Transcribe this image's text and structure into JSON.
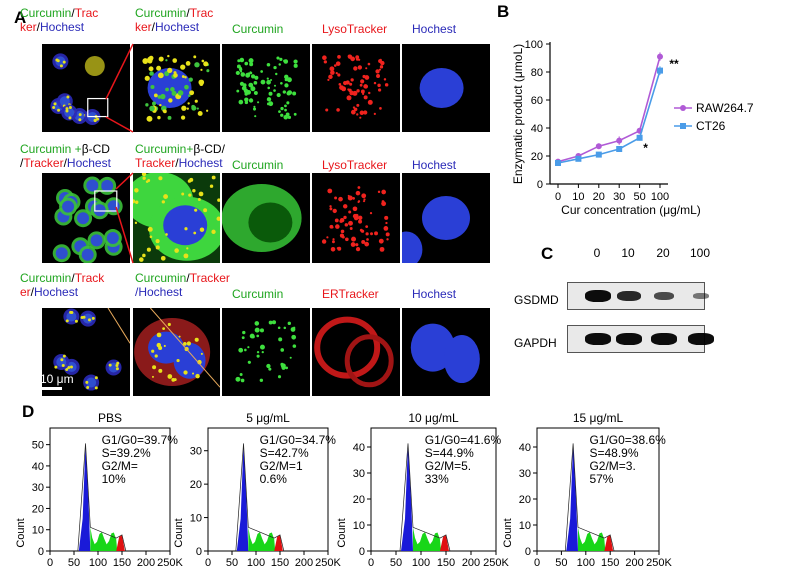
{
  "panel_labels": {
    "a": "A",
    "b": "B",
    "c": "C",
    "d": "D"
  },
  "panel_a": {
    "row1": {
      "title_lines": [
        [
          {
            "t": "Curcumin",
            "c": "green"
          },
          {
            "t": "/",
            "c": "black"
          },
          {
            "t": "Trac",
            "c": "red"
          }
        ],
        [
          {
            "t": "ker",
            "c": "red"
          },
          {
            "t": "/",
            "c": "black"
          },
          {
            "t": "Hochest",
            "c": "blue"
          }
        ]
      ],
      "zoom_lines": [
        [
          {
            "t": "Curcumin",
            "c": "green"
          },
          {
            "t": "/",
            "c": "black"
          },
          {
            "t": "Trac",
            "c": "red"
          }
        ],
        [
          {
            "t": "ker",
            "c": "red"
          },
          {
            "t": "/",
            "c": "black"
          },
          {
            "t": "Hochest",
            "c": "blue"
          }
        ]
      ],
      "channels": [
        {
          "label": "Curcumin",
          "c": "green"
        },
        {
          "label": "LysoTracker",
          "c": "red"
        },
        {
          "label": "Hochest",
          "c": "blue"
        }
      ]
    },
    "row2": {
      "title_lines": [
        [
          {
            "t": "Curcumin +",
            "c": "green"
          },
          {
            "t": "β-CD",
            "c": "black"
          }
        ],
        [
          {
            "t": "/",
            "c": "black"
          },
          {
            "t": "Tracker",
            "c": "red"
          },
          {
            "t": "/",
            "c": "black"
          },
          {
            "t": "Hochest",
            "c": "blue"
          }
        ]
      ],
      "zoom_lines": [
        [
          {
            "t": "Curcumin+",
            "c": "green"
          },
          {
            "t": "β-CD/",
            "c": "black"
          }
        ],
        [
          {
            "t": "Tracker",
            "c": "red"
          },
          {
            "t": "/",
            "c": "black"
          },
          {
            "t": "Hochest",
            "c": "blue"
          }
        ]
      ],
      "channels": [
        {
          "label": "Curcumin",
          "c": "green"
        },
        {
          "label": "LysoTracker",
          "c": "red"
        },
        {
          "label": "Hochest",
          "c": "blue"
        }
      ]
    },
    "row3": {
      "title_lines": [
        [
          {
            "t": "Curcumin",
            "c": "green"
          },
          {
            "t": "/",
            "c": "black"
          },
          {
            "t": "Track",
            "c": "red"
          }
        ],
        [
          {
            "t": "er",
            "c": "red"
          },
          {
            "t": "/",
            "c": "black"
          },
          {
            "t": "Hochest",
            "c": "blue"
          }
        ]
      ],
      "zoom_lines": [
        [
          {
            "t": "Curcumin",
            "c": "green"
          },
          {
            "t": "/",
            "c": "black"
          },
          {
            "t": "Tracker",
            "c": "red"
          }
        ],
        [
          {
            "t": "/Hochest",
            "c": "blue"
          }
        ]
      ],
      "channels": [
        {
          "label": "Curcumin",
          "c": "green"
        },
        {
          "label": "ERTracker",
          "c": "red"
        },
        {
          "label": "Hochest",
          "c": "blue"
        }
      ]
    },
    "scale_bar": "10 μm"
  },
  "colors": {
    "green": "#1fa51f",
    "red": "#e8161b",
    "blue": "#2a2ab8",
    "black": "#000000",
    "raw": "#b05ad6",
    "ct26": "#4a9ce8"
  },
  "chart_data": [
    {
      "type": "line",
      "panel": "B",
      "xlabel": "Cur concentration (μg/mL)",
      "ylabel": "Enzymatic product (μmoL)",
      "categories": [
        "0",
        "10",
        "20",
        "30",
        "50",
        "100"
      ],
      "ylim": [
        0,
        100
      ],
      "yticks": [
        "0",
        "20",
        "40",
        "60",
        "80",
        "100"
      ],
      "series": [
        {
          "name": "RAW264.7",
          "color": "#b05ad6",
          "values": [
            16,
            20,
            27,
            31,
            38,
            91
          ],
          "errors": [
            1.5,
            1.5,
            2,
            3,
            2,
            3
          ]
        },
        {
          "name": "CT26",
          "color": "#4a9ce8",
          "values": [
            15,
            18,
            21,
            25,
            33,
            81
          ],
          "errors": [
            1.5,
            1.5,
            1.5,
            2,
            2,
            3
          ]
        }
      ],
      "annotations": [
        {
          "text": "*",
          "at": "50"
        },
        {
          "text": "**",
          "at": "100"
        }
      ],
      "legend": "right"
    },
    {
      "type": "histogram",
      "panel": "D",
      "x_ticks": [
        "0",
        "50",
        "100",
        "150",
        "200",
        "250K"
      ],
      "ylabel": "Count",
      "plots": [
        {
          "title": "PBS",
          "yticks": [
            "0",
            "10",
            "20",
            "30",
            "40",
            "50"
          ],
          "ymax": 55,
          "stats": [
            "G1/G0=39.7%",
            "S=39.2%",
            "G2/M=",
            "10%"
          ]
        },
        {
          "title": "5 μg/mL",
          "yticks": [
            "0",
            "10",
            "20",
            "30"
          ],
          "ymax": 35,
          "stats": [
            "G1/G0=34.7%",
            "S=42.7%",
            "G2/M=1",
            "0.6%"
          ]
        },
        {
          "title": "10 μg/mL",
          "yticks": [
            "0",
            "10",
            "20",
            "30",
            "40"
          ],
          "ymax": 45,
          "stats": [
            "G1/G0=41.6%",
            "S=44.9%",
            "G2/M=5.",
            "33%"
          ]
        },
        {
          "title": "15 μg/mL",
          "yticks": [
            "0",
            "10",
            "20",
            "30",
            "40"
          ],
          "ymax": 45,
          "stats": [
            "G1/G0=38.6%",
            "S=48.9%",
            "G2/M=3.",
            "57%"
          ]
        }
      ]
    }
  ],
  "panel_c": {
    "lanes": [
      "0",
      "10",
      "20",
      "100"
    ],
    "rows": [
      "GSDMD",
      "GAPDH"
    ],
    "gsdmd_intensity": [
      1.0,
      0.8,
      0.55,
      0.25
    ]
  }
}
